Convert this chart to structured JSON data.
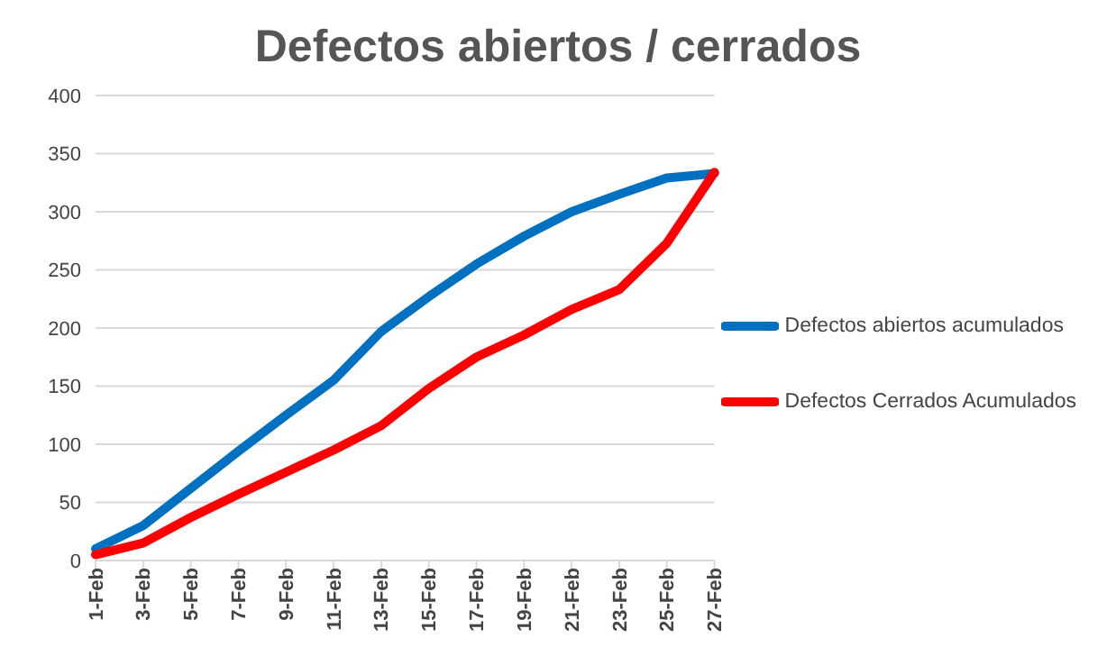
{
  "chart_data": {
    "type": "line",
    "title": "Defectos abiertos / cerrados",
    "categories": [
      "1-Feb",
      "3-Feb",
      "5-Feb",
      "7-Feb",
      "9-Feb",
      "11-Feb",
      "13-Feb",
      "15-Feb",
      "17-Feb",
      "19-Feb",
      "21-Feb",
      "23-Feb",
      "25-Feb",
      "27-Feb"
    ],
    "series": [
      {
        "name": "Defectos abiertos acumulados",
        "color": "#0070c0",
        "values": [
          10,
          30,
          62,
          94,
          125,
          155,
          197,
          227,
          255,
          279,
          300,
          315,
          329,
          333
        ]
      },
      {
        "name": "Defectos Cerrados Acumulados",
        "color": "#ff0000",
        "values": [
          5,
          15,
          37,
          57,
          76,
          95,
          116,
          148,
          175,
          194,
          216,
          233,
          273,
          334
        ]
      }
    ],
    "ylim": [
      0,
      400
    ],
    "yticks": [
      0,
      50,
      100,
      150,
      200,
      250,
      300,
      350,
      400
    ],
    "grid": "y",
    "legend": "right",
    "marker": "none",
    "line_style": "solid"
  }
}
